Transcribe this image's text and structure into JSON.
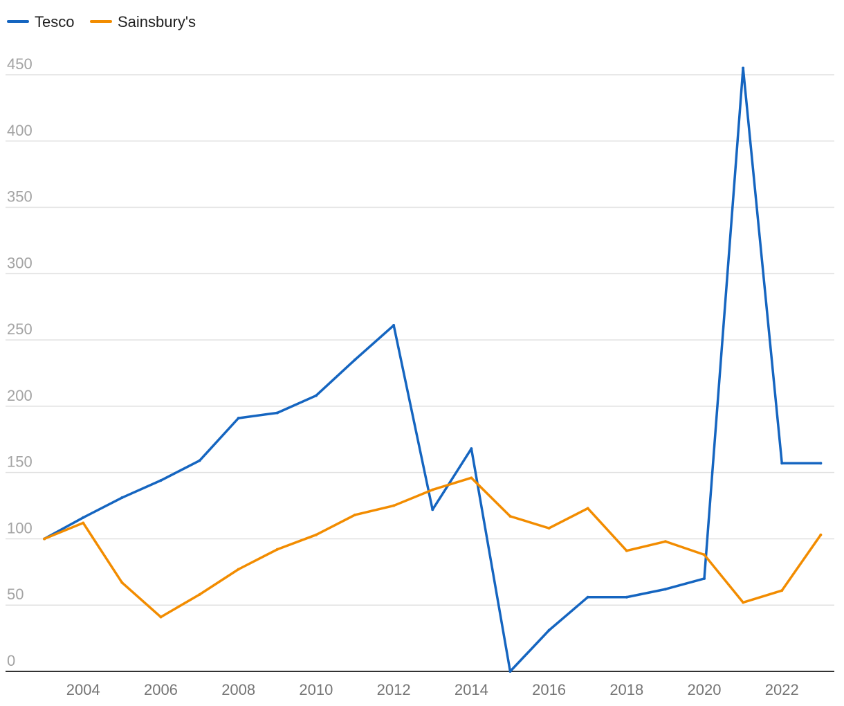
{
  "chart_data": {
    "type": "line",
    "title": "",
    "xlabel": "",
    "ylabel": "",
    "x": [
      2003,
      2004,
      2005,
      2006,
      2007,
      2008,
      2009,
      2010,
      2011,
      2012,
      2013,
      2014,
      2015,
      2016,
      2017,
      2018,
      2019,
      2020,
      2021,
      2022,
      2023
    ],
    "series": [
      {
        "name": "Tesco",
        "color": "#1565c0",
        "values": [
          100,
          116,
          131,
          144,
          159,
          191,
          195,
          208,
          235,
          261,
          122,
          168,
          0,
          31,
          56,
          56,
          62,
          70,
          455,
          157,
          157
        ]
      },
      {
        "name": "Sainsbury's",
        "color": "#f28c00",
        "values": [
          100,
          112,
          67,
          41,
          58,
          77,
          92,
          103,
          118,
          125,
          137,
          146,
          117,
          108,
          123,
          91,
          98,
          88,
          52,
          61,
          103
        ]
      }
    ],
    "yticks": [
      0,
      50,
      100,
      150,
      200,
      250,
      300,
      350,
      400,
      450
    ],
    "xticks": [
      2004,
      2006,
      2008,
      2010,
      2012,
      2014,
      2016,
      2018,
      2020,
      2022
    ],
    "ylim": [
      0,
      450
    ],
    "xlim": [
      2002,
      2023.35
    ],
    "grid": true,
    "legend": "top-left"
  }
}
